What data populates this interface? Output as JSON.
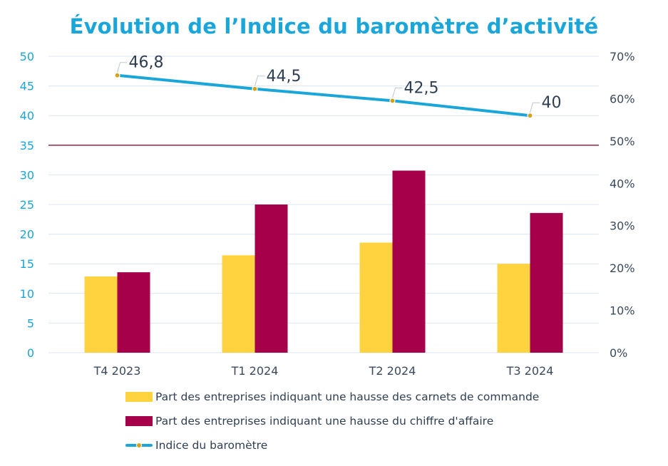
{
  "title": "Évolution de l’Indice du baromètre d’activité",
  "colors": {
    "carnets": "#ffd23f",
    "chiffre": "#a6004a",
    "indice": "#1aa6d9",
    "dot_fill": "#d4a21a",
    "threshold": "#8a1538",
    "grid": "#dbe6ee"
  },
  "legend": {
    "items": [
      {
        "label": "Part des entreprises indiquant une hausse des carnets de commande",
        "kind": "box",
        "color": "#ffd23f"
      },
      {
        "label": "Part des entreprises indiquant une hausse du chiffre d'affaire",
        "kind": "box",
        "color": "#a6004a"
      },
      {
        "label": "Indice du baromètre",
        "kind": "line",
        "color": "#1aa6d9"
      }
    ]
  },
  "chart_data": {
    "type": "bar",
    "categories": [
      "T4 2023",
      "T1 2024",
      "T2 2024",
      "T3 2024"
    ],
    "y_left": {
      "ticks": [
        "0",
        "5",
        "10",
        "15",
        "20",
        "25",
        "30",
        "35",
        "40",
        "45",
        "50"
      ],
      "ylim": [
        0,
        50
      ]
    },
    "y_right": {
      "ticks": [
        "0%",
        "10%",
        "20%",
        "30%",
        "40%",
        "50%",
        "60%",
        "70%"
      ],
      "ylim": [
        0,
        70
      ]
    },
    "series": [
      {
        "name": "Part des entreprises indiquant une hausse des carnets de commande",
        "type": "bar",
        "axis": "right",
        "values": [
          18,
          23,
          26,
          21
        ]
      },
      {
        "name": "Part des entreprises indiquant une hausse du chiffre d'affaire",
        "type": "bar",
        "axis": "right",
        "values": [
          19,
          35,
          43,
          33
        ]
      },
      {
        "name": "Indice du baromètre",
        "type": "line",
        "axis": "right",
        "values": [
          65.5,
          62.3,
          59.5,
          56
        ],
        "data_labels": [
          "46,8",
          "44,5",
          "42,5",
          "40"
        ]
      }
    ],
    "reference_line": {
      "axis": "right",
      "value": 49
    },
    "grid": true,
    "legend_position": "bottom"
  }
}
